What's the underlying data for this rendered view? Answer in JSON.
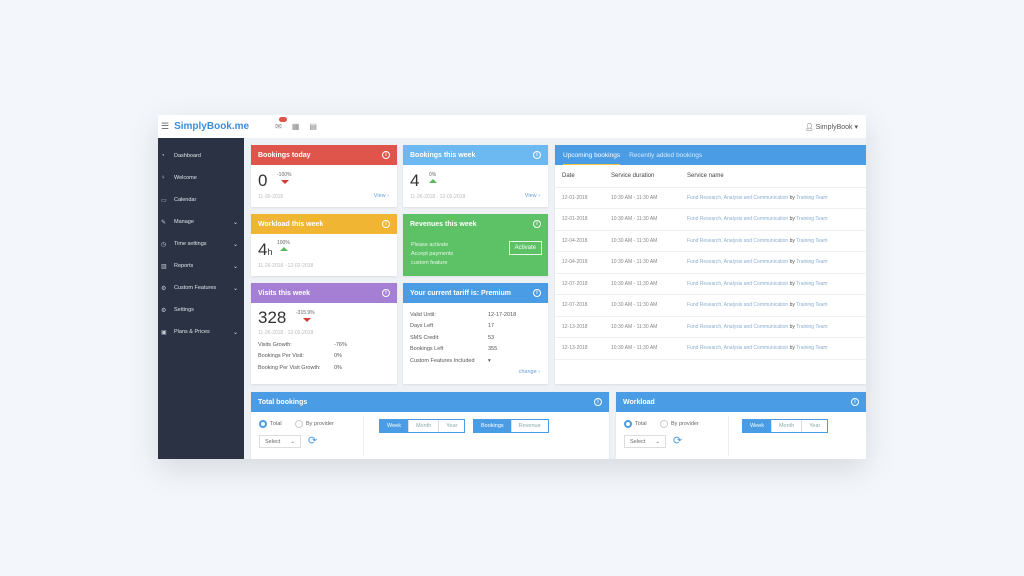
{
  "header": {
    "logo": "SimplyBook.me",
    "user": "SimplyBook"
  },
  "sidebar": {
    "items": [
      {
        "label": "Dashboard",
        "icon": "gauge"
      },
      {
        "label": "Welcome",
        "icon": "bulb"
      },
      {
        "label": "Calendar",
        "icon": "calendar"
      },
      {
        "label": "Manage",
        "icon": "pencil",
        "chevron": true
      },
      {
        "label": "Time settings",
        "icon": "clock",
        "chevron": true
      },
      {
        "label": "Reports",
        "icon": "chart",
        "chevron": true
      },
      {
        "label": "Custom Features",
        "icon": "gears",
        "chevron": true
      },
      {
        "label": "Settings",
        "icon": "gear"
      },
      {
        "label": "Plans & Prices",
        "icon": "tag",
        "chevron": true
      }
    ]
  },
  "cards": {
    "bookings_today": {
      "title": "Bookings today",
      "value": "0",
      "change": "-100%",
      "date": "11-30-2018",
      "link": "View",
      "color": "#e0554b"
    },
    "bookings_week": {
      "title": "Bookings this week",
      "value": "4",
      "change": "0%",
      "date": "11-26-2018 - 12-02-2018",
      "link": "View",
      "color": "#6cb8f0"
    },
    "workload_week": {
      "title": "Workload this week",
      "value": "4",
      "unit": "h",
      "change": "100%",
      "date": "11-26-2018 - 12-02-2018",
      "color": "#f0b532"
    },
    "revenues_week": {
      "title": "Revenues this week",
      "lines": [
        "Please activate",
        "Accept payments",
        "custom feature"
      ],
      "button": "Activate",
      "color": "#5cc265"
    },
    "visits_week": {
      "title": "Visits this week",
      "value": "328",
      "change": "-315.9%",
      "date": "11-26-2018 - 12-02-2018",
      "color": "#a57fd4",
      "stats": [
        {
          "label": "Visits Growth:",
          "value": "-76%"
        },
        {
          "label": "Bookings Per Visit:",
          "value": "0%"
        },
        {
          "label": "Booking Per Visit Growth:",
          "value": "0%"
        }
      ]
    },
    "tariff": {
      "title": "Your current tariff is: Premium",
      "color": "#4a9de4",
      "link": "change",
      "rows": [
        {
          "label": "Valid Until:",
          "value": "12-17-2018"
        },
        {
          "label": "Days Left",
          "value": "17"
        },
        {
          "label": "SMS Credit",
          "value": "53"
        },
        {
          "label": "Bookings Left",
          "value": "355"
        },
        {
          "label": "Custom Features Included",
          "value": "▾"
        }
      ]
    }
  },
  "bookings": {
    "tabs": [
      "Upcoming bookings",
      "Recently added bookings"
    ],
    "columns": [
      "Date",
      "Service duration",
      "Service name"
    ],
    "rows": [
      {
        "date": "12-01-2018",
        "duration": "10:30 AM - 11:30 AM",
        "service": "Fund Research, Analysis and Communication",
        "by": "by",
        "provider": "Training Team"
      },
      {
        "date": "12-01-2018",
        "duration": "10:30 AM - 11:30 AM",
        "service": "Fund Research, Analysis and Communication",
        "by": "by",
        "provider": "Training Team"
      },
      {
        "date": "12-04-2018",
        "duration": "10:30 AM - 11:30 AM",
        "service": "Fund Research, Analysis and Communication",
        "by": "by",
        "provider": "Training Team"
      },
      {
        "date": "12-04-2018",
        "duration": "10:30 AM - 11:30 AM",
        "service": "Fund Research, Analysis and Communication",
        "by": "by",
        "provider": "Training Team"
      },
      {
        "date": "12-07-2018",
        "duration": "10:30 AM - 11:30 AM",
        "service": "Fund Research, Analysis and Communication",
        "by": "by",
        "provider": "Training Team"
      },
      {
        "date": "12-07-2018",
        "duration": "10:30 AM - 11:30 AM",
        "service": "Fund Research, Analysis and Communication",
        "by": "by",
        "provider": "Training Team"
      },
      {
        "date": "12-13-2018",
        "duration": "10:30 AM - 11:30 AM",
        "service": "Fund Research, Analysis and Communication",
        "by": "by",
        "provider": "Training Team"
      },
      {
        "date": "12-13-2018",
        "duration": "10:30 AM - 11:30 AM",
        "service": "Fund Research, Analysis and Communication",
        "by": "by",
        "provider": "Training Team"
      }
    ]
  },
  "total_bookings": {
    "title": "Total bookings",
    "radio_total": "Total",
    "radio_provider": "By provider",
    "select": "Select",
    "periods": [
      "Week",
      "Month",
      "Year"
    ],
    "modes": [
      "Bookings",
      "Revenue"
    ]
  },
  "workload": {
    "title": "Workload",
    "radio_total": "Total",
    "radio_provider": "By provider",
    "select": "Select",
    "periods": [
      "Week",
      "Month",
      "Year"
    ]
  }
}
